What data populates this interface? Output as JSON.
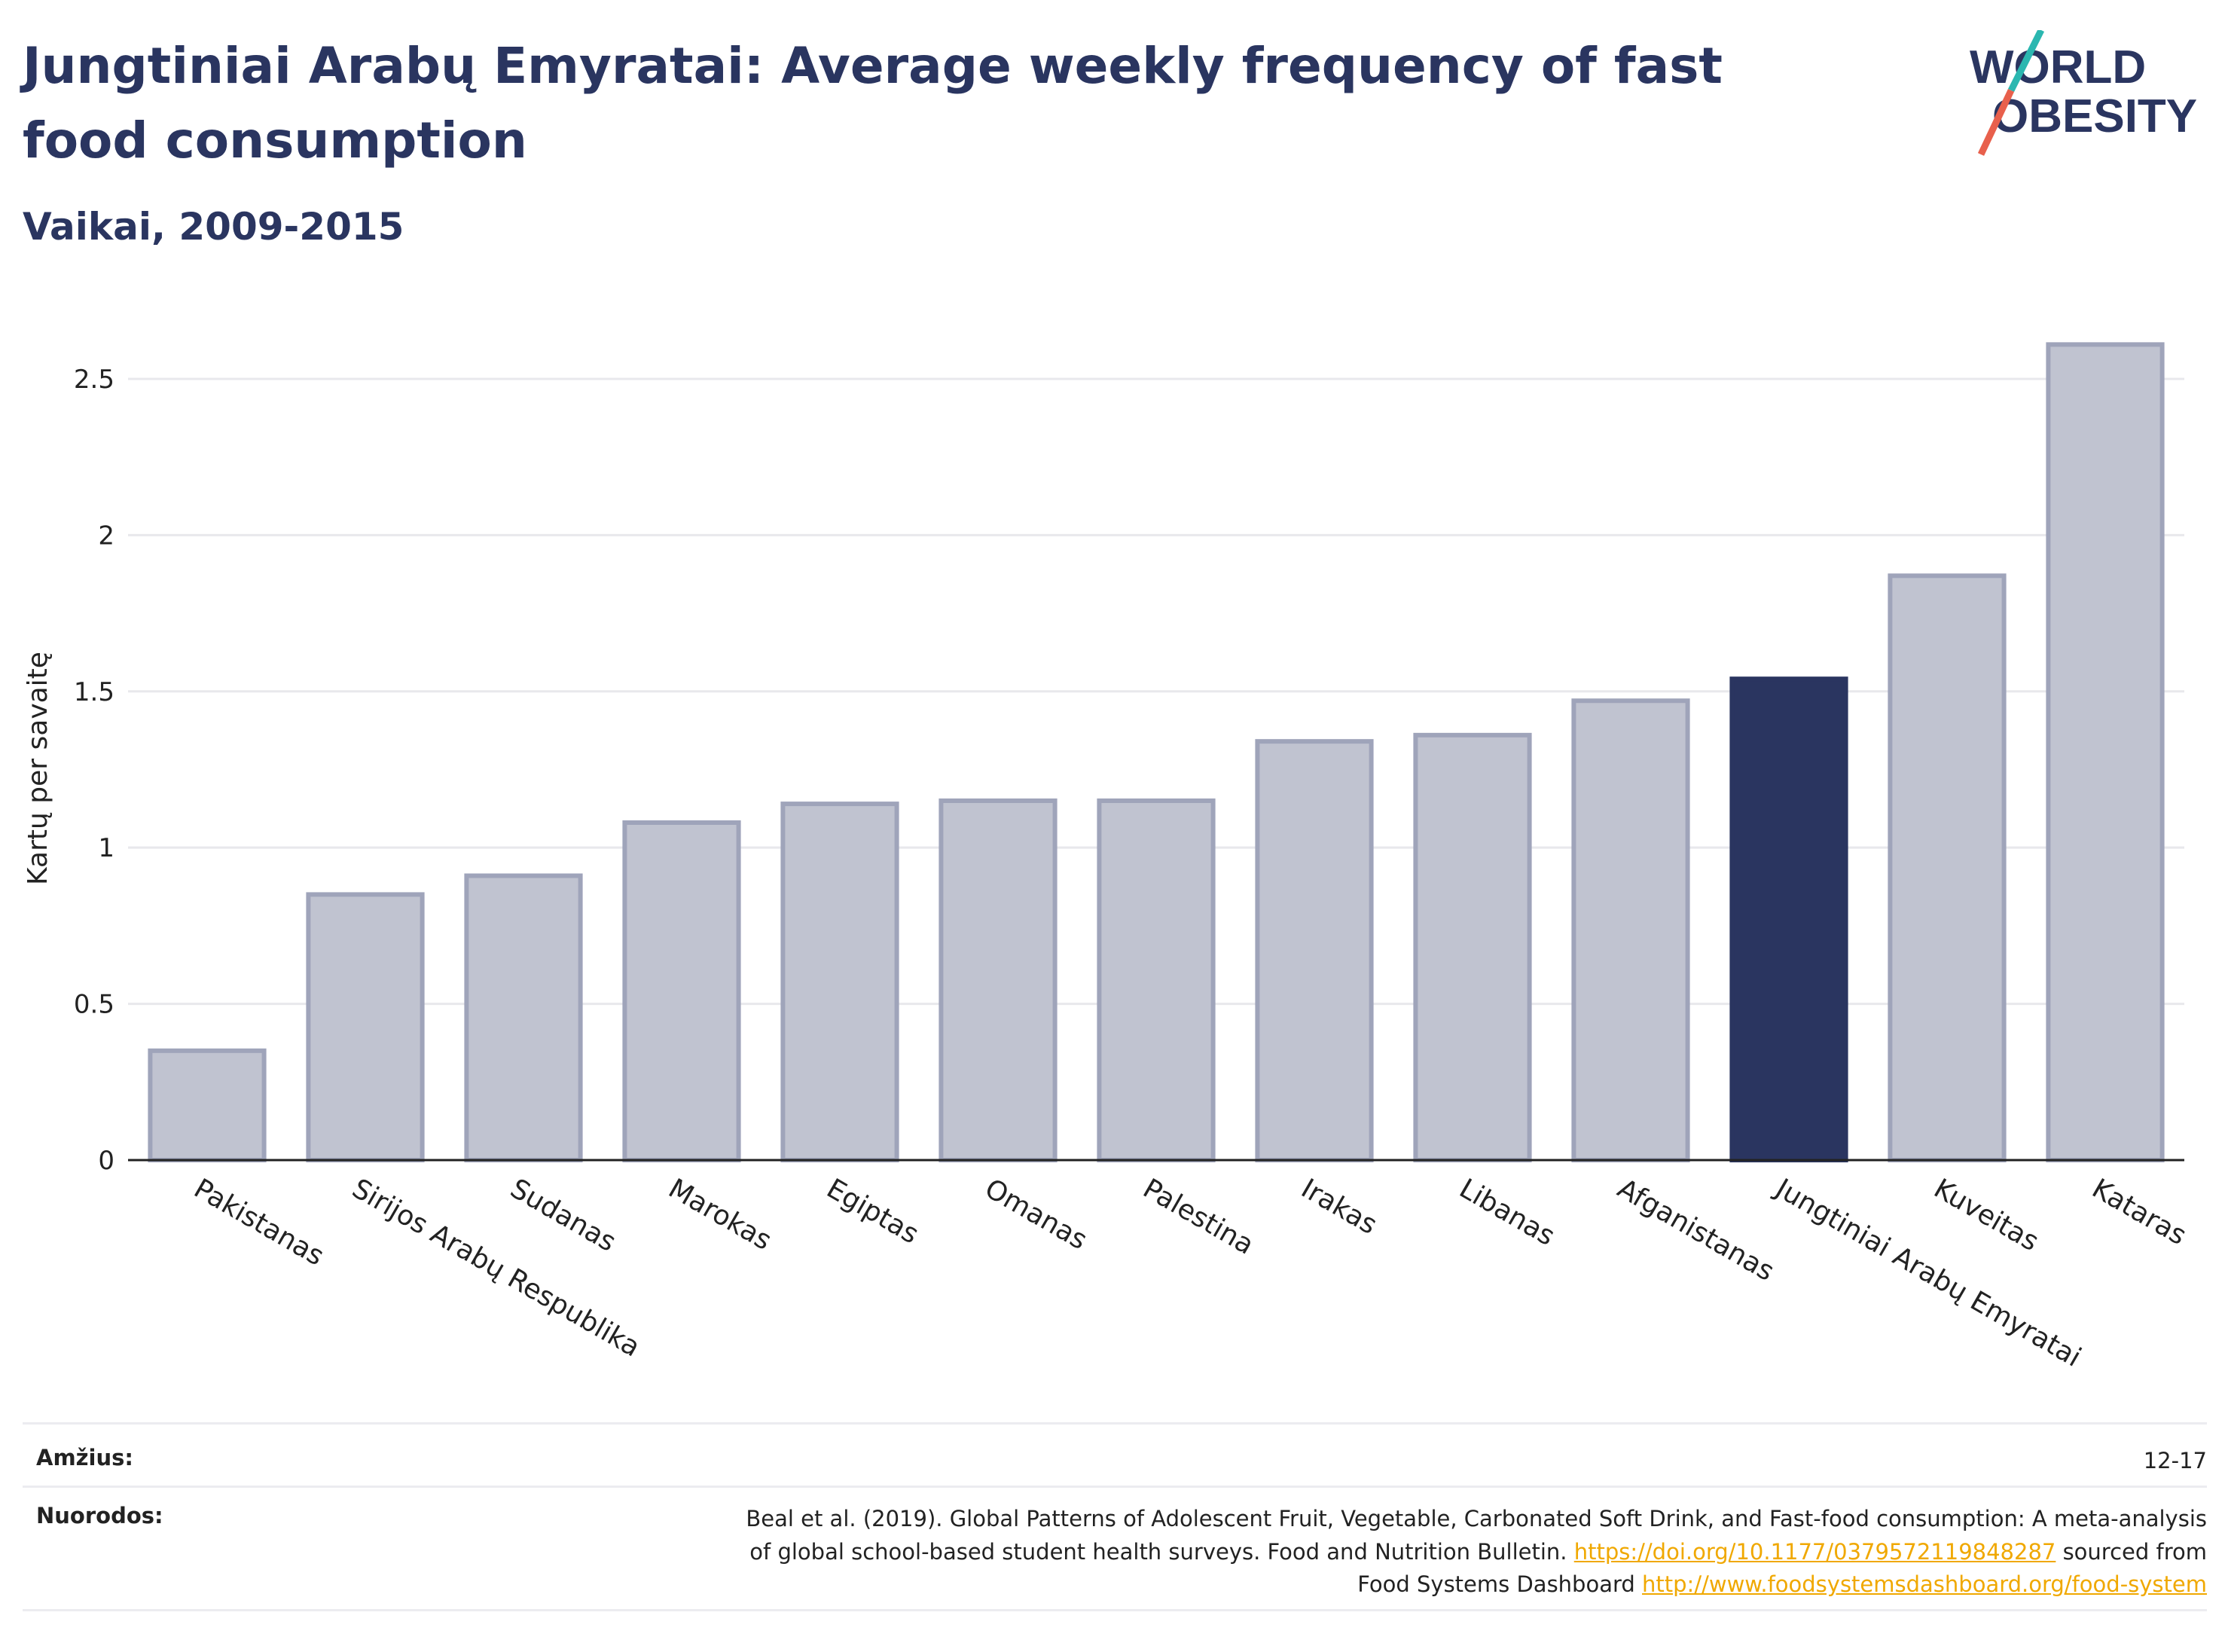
{
  "header": {
    "title": "Jungtiniai Arabų Emyratai: Average weekly frequency of fast food consumption",
    "subtitle": "Vaikai, 2009-2015"
  },
  "logo": {
    "line1": "WORLD",
    "line2": "OBESITY"
  },
  "colors": {
    "highlight": "#2a3560",
    "bar_fill": "#c0c3d0",
    "bar_stroke": "#9fa4ba",
    "grid": "#e8e8ec",
    "logo_slash_teal": "#2bb7b0",
    "logo_slash_red": "#e8604c",
    "link": "#f0a800"
  },
  "chart_data": {
    "type": "bar",
    "ylabel": "Kartų per savaitę",
    "ylim": [
      0,
      2.7
    ],
    "yticks": [
      0,
      0.5,
      1,
      1.5,
      2,
      2.5
    ],
    "ytick_labels": [
      "0",
      "0.5",
      "1",
      "1.5",
      "2",
      "2.5"
    ],
    "categories": [
      "Pakistanas",
      "Sirijos Arabų Respublika",
      "Sudanas",
      "Marokas",
      "Egiptas",
      "Omanas",
      "Palestina",
      "Irakas",
      "Libanas",
      "Afganistanas",
      "Jungtiniai Arabų Emyratai",
      "Kuveitas",
      "Kataras"
    ],
    "values": [
      0.35,
      0.85,
      0.91,
      1.08,
      1.14,
      1.15,
      1.15,
      1.34,
      1.36,
      1.47,
      1.54,
      1.87,
      2.61
    ],
    "highlight_category": "Jungtiniai Arabų Emyratai",
    "grid": true
  },
  "footer": {
    "age_label": "Amžius:",
    "age_value": "12-17",
    "source_label": "Nuorodos:",
    "source_line1": "Beal et al. (2019). Global Patterns of Adolescent Fruit, Vegetable, Carbonated Soft Drink, and Fast-food consumption: A meta-analysis",
    "source_line2_text": "of global school-based student health surveys. Food and Nutrition Bulletin. ",
    "source_link1": "https://doi.org/10.1177/0379572119848287",
    "source_line2_suffix": " sourced from",
    "source_line3_text": "Food Systems Dashboard ",
    "source_link2": "http://www.foodsystemsdashboard.org/food-system"
  }
}
